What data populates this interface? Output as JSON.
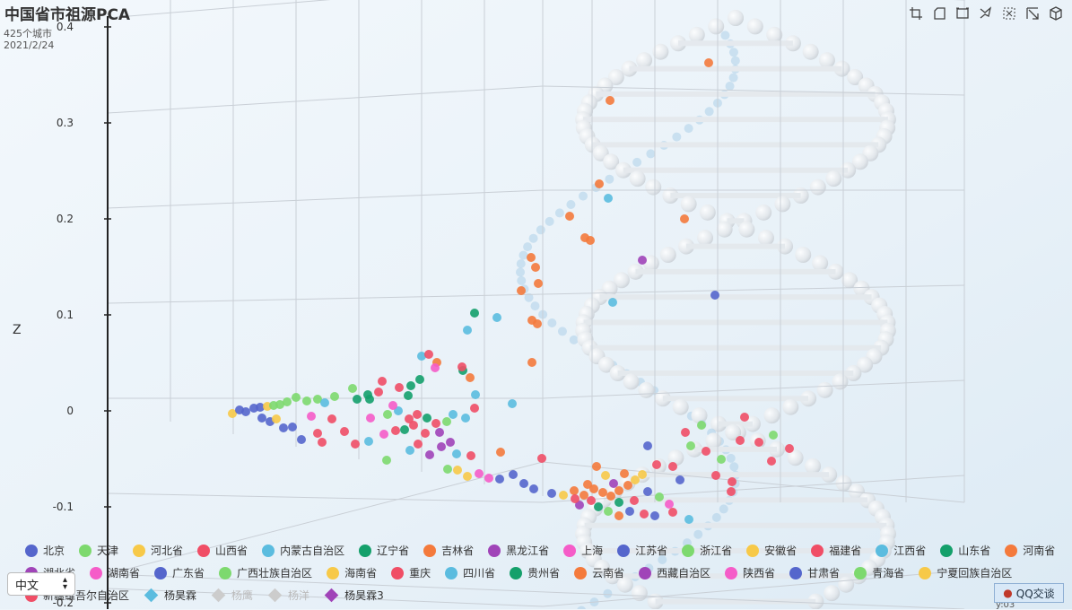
{
  "header": {
    "title": "中国省市祖源PCA",
    "subtitle_line1": "425个城市",
    "subtitle_line2": "2021/2/24"
  },
  "toolbar": {
    "icons": [
      "crop-icon",
      "crop-corner-icon",
      "zoom-rect-icon",
      "lasso-icon",
      "select-box-icon",
      "pan-icon",
      "reset-camera-icon"
    ]
  },
  "language_select": {
    "value": "中文"
  },
  "qq_button": {
    "label": "QQ交谈"
  },
  "chart_data": {
    "type": "scatter",
    "title": "中国省市祖源PCA",
    "zlabel": "Z",
    "zlim": [
      -0.2,
      0.4
    ],
    "z_ticks": [
      "0.4",
      "0.3",
      "0.2",
      "0.1",
      "0",
      "-0.1",
      "-0.2"
    ],
    "xlabel_partial": "y:03",
    "legend_position": "bottom",
    "legend_rows": [
      [
        "北京",
        "天津",
        "河北省",
        "山西省",
        "内蒙古自治区",
        "辽宁省",
        "吉林省",
        "黑龙江省",
        "上海",
        "江苏省",
        "浙江省",
        "安徽省",
        "福建省",
        "江西省",
        "山东省",
        "河南省"
      ],
      [
        "湖北省",
        "湖南省",
        "广东省",
        "广西壮族自治区",
        "海南省",
        "重庆",
        "四川省",
        "贵州省",
        "云南省",
        "西藏自治区",
        "陕西省",
        "甘肃省",
        "青海省",
        "宁夏回族自治区"
      ],
      [
        "新疆维吾尔自治区",
        "杨昊霖",
        "杨鹰",
        "杨洋",
        "杨昊霖3"
      ]
    ],
    "legend_colors": {
      "北京": "#5566cc",
      "天津": "#7dd96e",
      "河北省": "#f7c948",
      "山西省": "#f04e66",
      "内蒙古自治区": "#5bbcdf",
      "辽宁省": "#14a06b",
      "吉林省": "#f47a3c",
      "黑龙江省": "#a044b8",
      "上海": "#f55cc8",
      "江苏省": "#5566cc",
      "浙江省": "#7dd96e",
      "安徽省": "#f7c948",
      "福建省": "#f04e66",
      "江西省": "#5bbcdf",
      "山东省": "#14a06b",
      "河南省": "#f47a3c",
      "湖北省": "#a044b8",
      "湖南省": "#f55cc8",
      "广东省": "#5566cc",
      "广西壮族自治区": "#7dd96e",
      "海南省": "#f7c948",
      "重庆": "#f04e66",
      "四川省": "#5bbcdf",
      "贵州省": "#14a06b",
      "云南省": "#f47a3c",
      "西藏自治区": "#a044b8",
      "陕西省": "#f55cc8",
      "甘肃省": "#5566cc",
      "青海省": "#7dd96e",
      "宁夏回族自治区": "#f7c948",
      "新疆维吾尔自治区": "#f04e66",
      "杨昊霖": "#5bbcdf",
      "杨鹰": "#cccccc",
      "杨洋": "#cccccc",
      "杨昊霖3": "#a044b8"
    },
    "legend_symbols": {
      "杨昊霖": "diamond",
      "杨鹰": "diamond",
      "杨洋": "diamond",
      "杨昊霖3": "diamond"
    },
    "legend_hidden": [
      "杨鹰",
      "杨洋"
    ],
    "grid": true,
    "points": [
      [
        259,
        461,
        "#f7c948"
      ],
      [
        267,
        457,
        "#5566cc"
      ],
      [
        274,
        459,
        "#5566cc"
      ],
      [
        283,
        455,
        "#5566cc"
      ],
      [
        290,
        454,
        "#5566cc"
      ],
      [
        298,
        453,
        "#f7c948"
      ],
      [
        305,
        452,
        "#7dd96e"
      ],
      [
        312,
        451,
        "#7dd96e"
      ],
      [
        320,
        448,
        "#7dd96e"
      ],
      [
        330,
        443,
        "#7dd96e"
      ],
      [
        342,
        447,
        "#7dd96e"
      ],
      [
        354,
        445,
        "#7dd96e"
      ],
      [
        362,
        449,
        "#5bbcdf"
      ],
      [
        373,
        442,
        "#7dd96e"
      ],
      [
        393,
        433,
        "#7dd96e"
      ],
      [
        398,
        445,
        "#14a06b"
      ],
      [
        410,
        440,
        "#14a06b"
      ],
      [
        422,
        437,
        "#f04e66"
      ],
      [
        292,
        466,
        "#5566cc"
      ],
      [
        301,
        470,
        "#5566cc"
      ],
      [
        308,
        467,
        "#f7c948"
      ],
      [
        316,
        477,
        "#5566cc"
      ],
      [
        326,
        476,
        "#5566cc"
      ],
      [
        336,
        490,
        "#5566cc"
      ],
      [
        347,
        464,
        "#f55cc8"
      ],
      [
        354,
        483,
        "#f04e66"
      ],
      [
        359,
        493,
        "#f04e66"
      ],
      [
        370,
        467,
        "#f04e66"
      ],
      [
        384,
        481,
        "#f04e66"
      ],
      [
        396,
        495,
        "#f04e66"
      ],
      [
        411,
        492,
        "#5bbcdf"
      ],
      [
        428,
        484,
        "#f55cc8"
      ],
      [
        441,
        480,
        "#f04e66"
      ],
      [
        451,
        479,
        "#14a06b"
      ],
      [
        461,
        474,
        "#f04e66"
      ],
      [
        474,
        483,
        "#f04e66"
      ],
      [
        432,
        462,
        "#7dd96e"
      ],
      [
        444,
        458,
        "#5bbcdf"
      ],
      [
        456,
        467,
        "#f04e66"
      ],
      [
        465,
        462,
        "#f04e66"
      ],
      [
        476,
        466,
        "#14a06b"
      ],
      [
        486,
        472,
        "#f04e66"
      ],
      [
        490,
        482,
        "#a044b8"
      ],
      [
        498,
        470,
        "#7dd96e"
      ],
      [
        505,
        462,
        "#5bbcdf"
      ],
      [
        519,
        466,
        "#5bbcdf"
      ],
      [
        529,
        455,
        "#f04e66"
      ],
      [
        457,
        502,
        "#5bbcdf"
      ],
      [
        466,
        495,
        "#f04e66"
      ],
      [
        479,
        507,
        "#a044b8"
      ],
      [
        492,
        498,
        "#a044b8"
      ],
      [
        502,
        493,
        "#a044b8"
      ],
      [
        509,
        506,
        "#5bbcdf"
      ],
      [
        525,
        508,
        "#f04e66"
      ],
      [
        431,
        513,
        "#7dd96e"
      ],
      [
        499,
        523,
        "#7dd96e"
      ],
      [
        510,
        524,
        "#f7c948"
      ],
      [
        521,
        531,
        "#f7c948"
      ],
      [
        534,
        528,
        "#f55cc8"
      ],
      [
        545,
        533,
        "#f55cc8"
      ],
      [
        557,
        534,
        "#5566cc"
      ],
      [
        572,
        529,
        "#5566cc"
      ],
      [
        584,
        539,
        "#5566cc"
      ],
      [
        595,
        545,
        "#5566cc"
      ],
      [
        615,
        550,
        "#5566cc"
      ],
      [
        628,
        552,
        "#f7c948"
      ],
      [
        640,
        547,
        "#f47a3c"
      ],
      [
        651,
        552,
        "#f47a3c"
      ],
      [
        662,
        545,
        "#f47a3c"
      ],
      [
        672,
        549,
        "#f47a3c"
      ],
      [
        681,
        553,
        "#f47a3c"
      ],
      [
        690,
        547,
        "#f47a3c"
      ],
      [
        700,
        541,
        "#f47a3c"
      ],
      [
        708,
        535,
        "#f7c948"
      ],
      [
        716,
        529,
        "#f7c948"
      ],
      [
        722,
        548,
        "#5566cc"
      ],
      [
        735,
        554,
        "#7dd96e"
      ],
      [
        746,
        562,
        "#f55cc8"
      ],
      [
        659,
        558,
        "#f04e66"
      ],
      [
        667,
        565,
        "#14a06b"
      ],
      [
        678,
        570,
        "#7dd96e"
      ],
      [
        690,
        575,
        "#f47a3c"
      ],
      [
        702,
        570,
        "#5566cc"
      ],
      [
        718,
        573,
        "#f04e66"
      ],
      [
        730,
        575,
        "#5566cc"
      ],
      [
        750,
        571,
        "#f04e66"
      ],
      [
        768,
        579,
        "#5bbcdf"
      ],
      [
        646,
        563,
        "#a044b8"
      ],
      [
        655,
        540,
        "#f47a3c"
      ],
      [
        641,
        556,
        "#f04e66"
      ],
      [
        665,
        520,
        "#f47a3c"
      ],
      [
        675,
        530,
        "#f7c948"
      ],
      [
        684,
        539,
        "#a044b8"
      ],
      [
        696,
        528,
        "#f47a3c"
      ],
      [
        722,
        497,
        "#5566cc"
      ],
      [
        732,
        518,
        "#f04e66"
      ],
      [
        750,
        520,
        "#f04e66"
      ],
      [
        758,
        535,
        "#5566cc"
      ],
      [
        770,
        497,
        "#7dd96e"
      ],
      [
        782,
        474,
        "#7dd96e"
      ],
      [
        787,
        503,
        "#f04e66"
      ],
      [
        798,
        530,
        "#f04e66"
      ],
      [
        804,
        512,
        "#7dd96e"
      ],
      [
        816,
        537,
        "#f04e66"
      ],
      [
        825,
        491,
        "#f04e66"
      ],
      [
        830,
        465,
        "#f04e66"
      ],
      [
        846,
        493,
        "#f04e66"
      ],
      [
        860,
        514,
        "#f04e66"
      ],
      [
        862,
        485,
        "#7dd96e"
      ],
      [
        880,
        500,
        "#f04e66"
      ],
      [
        815,
        548,
        "#f04e66"
      ],
      [
        764,
        482,
        "#f04e66"
      ],
      [
        470,
        397,
        "#5bbcdf"
      ],
      [
        478,
        395,
        "#f04e66"
      ],
      [
        487,
        404,
        "#f47a3c"
      ],
      [
        485,
        410,
        "#f55cc8"
      ],
      [
        516,
        413,
        "#14a06b"
      ],
      [
        515,
        409,
        "#f04e66"
      ],
      [
        524,
        421,
        "#f47a3c"
      ],
      [
        530,
        440,
        "#5bbcdf"
      ],
      [
        571,
        450,
        "#5bbcdf"
      ],
      [
        521,
        368,
        "#5bbcdf"
      ],
      [
        529,
        349,
        "#14a06b"
      ],
      [
        554,
        354,
        "#5bbcdf"
      ],
      [
        593,
        404,
        "#f47a3c"
      ],
      [
        593,
        357,
        "#f47a3c"
      ],
      [
        599,
        361,
        "#f47a3c"
      ],
      [
        581,
        324,
        "#f47a3c"
      ],
      [
        600,
        316,
        "#f47a3c"
      ],
      [
        597,
        298,
        "#f47a3c"
      ],
      [
        592,
        287,
        "#f47a3c"
      ],
      [
        635,
        241,
        "#f47a3c"
      ],
      [
        652,
        265,
        "#f47a3c"
      ],
      [
        658,
        268,
        "#f47a3c"
      ],
      [
        668,
        205,
        "#f47a3c"
      ],
      [
        678,
        221,
        "#5bbcdf"
      ],
      [
        680,
        112,
        "#f47a3c"
      ],
      [
        763,
        244,
        "#f47a3c"
      ],
      [
        790,
        70,
        "#f47a3c"
      ],
      [
        716,
        290,
        "#a044b8"
      ],
      [
        683,
        337,
        "#5bbcdf"
      ],
      [
        797,
        329,
        "#5566cc"
      ],
      [
        458,
        430,
        "#14a06b"
      ],
      [
        455,
        441,
        "#14a06b"
      ],
      [
        468,
        423,
        "#14a06b"
      ],
      [
        438,
        452,
        "#f55cc8"
      ],
      [
        445,
        432,
        "#f04e66"
      ],
      [
        426,
        425,
        "#f04e66"
      ],
      [
        412,
        445,
        "#14a06b"
      ],
      [
        413,
        466,
        "#f55cc8"
      ],
      [
        604,
        511,
        "#f04e66"
      ],
      [
        558,
        504,
        "#f47a3c"
      ],
      [
        690,
        560,
        "#14a06b"
      ],
      [
        707,
        558,
        "#f04e66"
      ]
    ]
  }
}
